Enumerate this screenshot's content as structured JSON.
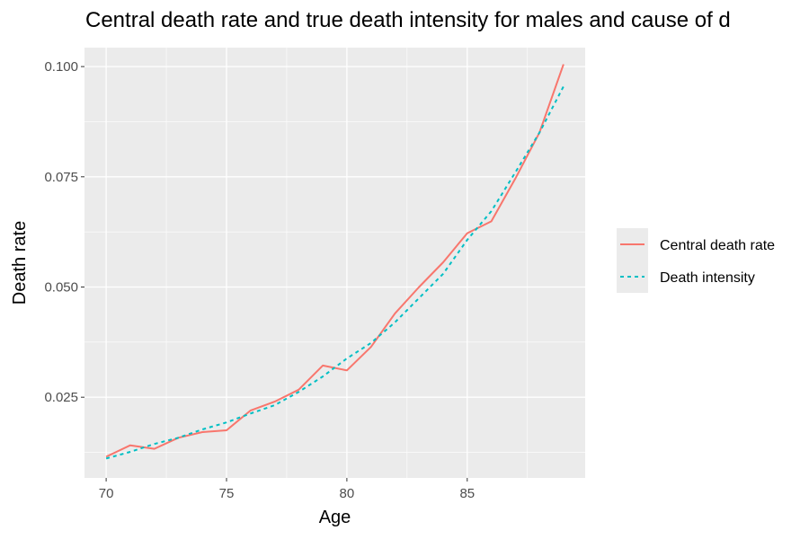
{
  "chart_data": {
    "type": "line",
    "title": "Central death rate and true death intensity for males and cause of d",
    "xlabel": "Age",
    "ylabel": "Death rate",
    "x": [
      70,
      71,
      72,
      73,
      74,
      75,
      76,
      77,
      78,
      79,
      80,
      81,
      82,
      83,
      84,
      85,
      86,
      87,
      88,
      89
    ],
    "xlim": [
      69.1,
      89.9
    ],
    "ylim": [
      0.0067,
      0.1043
    ],
    "x_ticks": [
      70,
      75,
      80,
      85
    ],
    "x_tick_labels": [
      "70",
      "75",
      "80",
      "85"
    ],
    "y_ticks": [
      0.025,
      0.05,
      0.075,
      0.1
    ],
    "y_tick_labels": [
      "0.025",
      "0.050",
      "0.075",
      "0.100"
    ],
    "grid": true,
    "legend_position": "right",
    "series": [
      {
        "name": "Central death rate",
        "color": "#F8766D",
        "dash": "solid",
        "values": [
          0.0115,
          0.0141,
          0.0133,
          0.0158,
          0.0171,
          0.0175,
          0.022,
          0.024,
          0.0267,
          0.0322,
          0.0311,
          0.0364,
          0.044,
          0.05,
          0.0556,
          0.0622,
          0.0649,
          0.0746,
          0.085,
          0.1005
        ]
      },
      {
        "name": "Death intensity",
        "color": "#00BFC4",
        "dash": "dotted",
        "values": [
          0.0111,
          0.0126,
          0.0144,
          0.0158,
          0.0177,
          0.0193,
          0.0213,
          0.0232,
          0.0262,
          0.0297,
          0.0338,
          0.0373,
          0.042,
          0.0475,
          0.053,
          0.0607,
          0.0672,
          0.076,
          0.085,
          0.0955
        ]
      }
    ]
  }
}
